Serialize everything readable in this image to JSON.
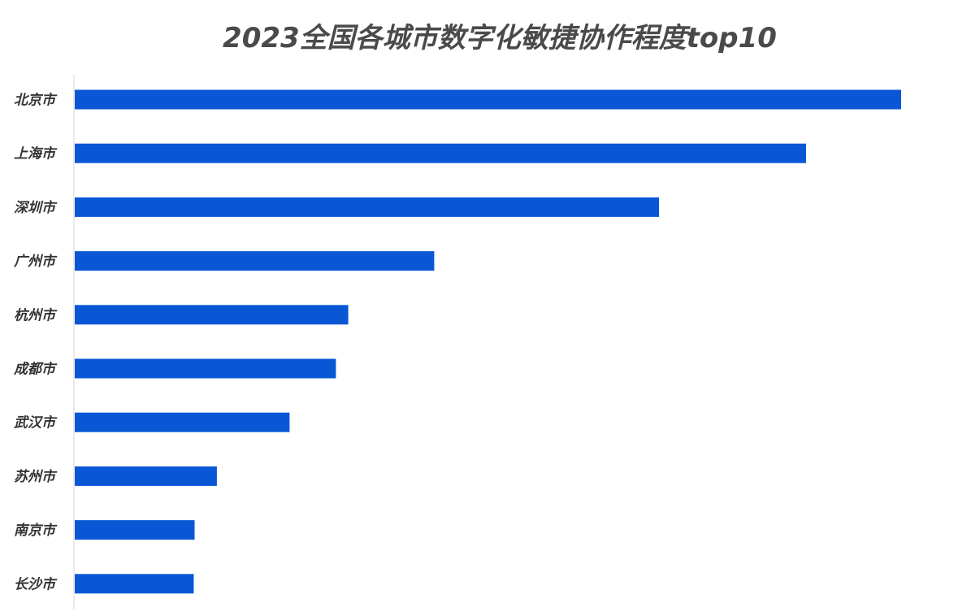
{
  "chart_data": {
    "type": "bar",
    "orientation": "horizontal",
    "title": "2023全国各城市数字化敏捷协作程度top10",
    "xlabel": "",
    "ylabel": "",
    "categories": [
      "北京市",
      "上海市",
      "深圳市",
      "广州市",
      "杭州市",
      "成都市",
      "武汉市",
      "苏州市",
      "南京市",
      "长沙市"
    ],
    "values": [
      100,
      88.5,
      70.7,
      43.5,
      33.1,
      31.6,
      26.0,
      17.2,
      14.5,
      14.4
    ],
    "xlim": [
      0,
      100
    ],
    "value_axis_visible": false,
    "grid": false,
    "legend": "none",
    "bar_color": "#0a57d6",
    "axis_line_color": "#e3e3e3"
  }
}
